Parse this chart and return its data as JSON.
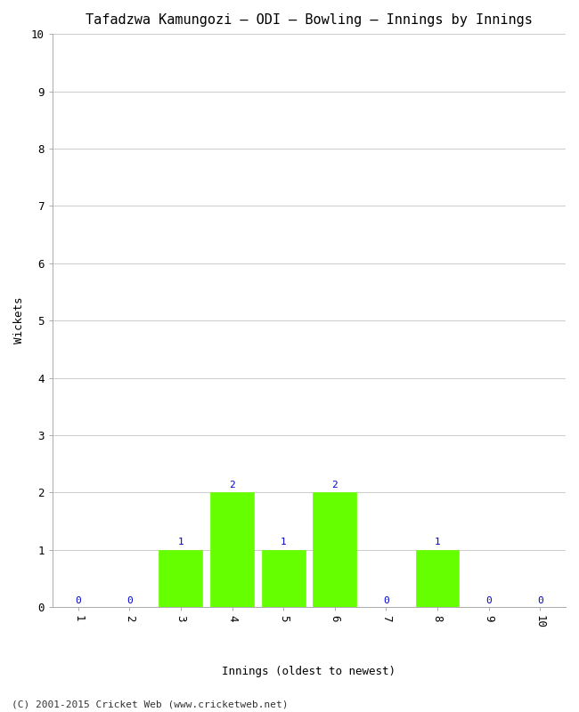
{
  "title": "Tafadzwa Kamungozi – ODI – Bowling – Innings by Innings",
  "xlabel": "Innings (oldest to newest)",
  "ylabel": "Wickets",
  "x_values": [
    1,
    2,
    3,
    4,
    5,
    6,
    7,
    8,
    9,
    10
  ],
  "wickets": [
    0,
    0,
    1,
    2,
    1,
    2,
    0,
    1,
    0,
    0
  ],
  "bar_color": "#66ff00",
  "bar_edge_color": "#66ff00",
  "ylim": [
    0,
    10
  ],
  "xlim": [
    0.5,
    10.5
  ],
  "yticks": [
    0,
    1,
    2,
    3,
    4,
    5,
    6,
    7,
    8,
    9,
    10
  ],
  "xticks": [
    1,
    2,
    3,
    4,
    5,
    6,
    7,
    8,
    9,
    10
  ],
  "label_color": "#0000cc",
  "background_color": "#ffffff",
  "plot_bg_color": "#ffffff",
  "grid_color": "#cccccc",
  "title_fontsize": 11,
  "axis_label_fontsize": 9,
  "tick_fontsize": 9,
  "bar_label_fontsize": 8,
  "footer_text": "(C) 2001-2015 Cricket Web (www.cricketweb.net)",
  "footer_fontsize": 8,
  "spine_color": "#aaaaaa"
}
